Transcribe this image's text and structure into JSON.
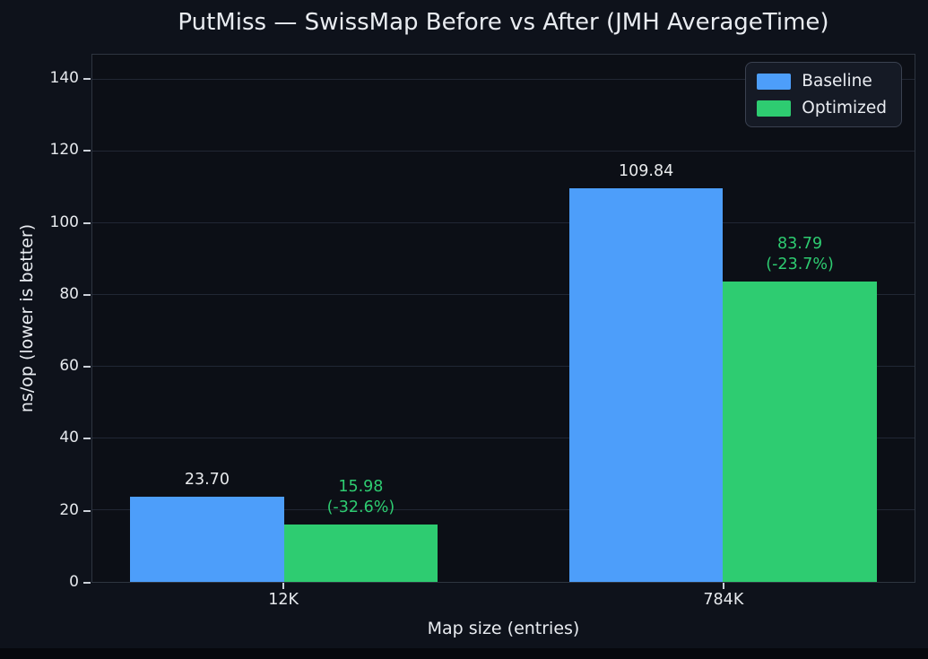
{
  "chart_data": {
    "type": "bar",
    "title": "PutMiss — SwissMap Before vs After (JMH AverageTime)",
    "xlabel": "Map size (entries)",
    "ylabel": "ns/op (lower is better)",
    "categories": [
      "12K",
      "784K"
    ],
    "series": [
      {
        "name": "Baseline",
        "color": "#4d9efa",
        "values": [
          23.7,
          109.84
        ],
        "value_labels": [
          [
            "23.70"
          ],
          [
            "109.84"
          ]
        ],
        "label_color": "#e8eaec"
      },
      {
        "name": "Optimized",
        "color": "#2ecc71",
        "values": [
          15.98,
          83.79
        ],
        "value_labels": [
          [
            "15.98",
            "(-32.6%)"
          ],
          [
            "83.79",
            "(-23.7%)"
          ]
        ],
        "label_color": "#2ecc71"
      }
    ],
    "yticks": [
      0,
      20,
      40,
      60,
      80,
      100,
      120,
      140
    ],
    "ylim": [
      0,
      147
    ],
    "grid": true,
    "legend_position": "top-right",
    "layout": {
      "group_centers_pct": [
        23.3,
        76.7
      ],
      "bar_width_pct": 18.7
    },
    "colors": {
      "figure_bg": "#0e121b",
      "plot_bg": "#0c0f16",
      "spine": "#2e3540",
      "gridline": "#212734",
      "text": "#e7eaef"
    }
  }
}
